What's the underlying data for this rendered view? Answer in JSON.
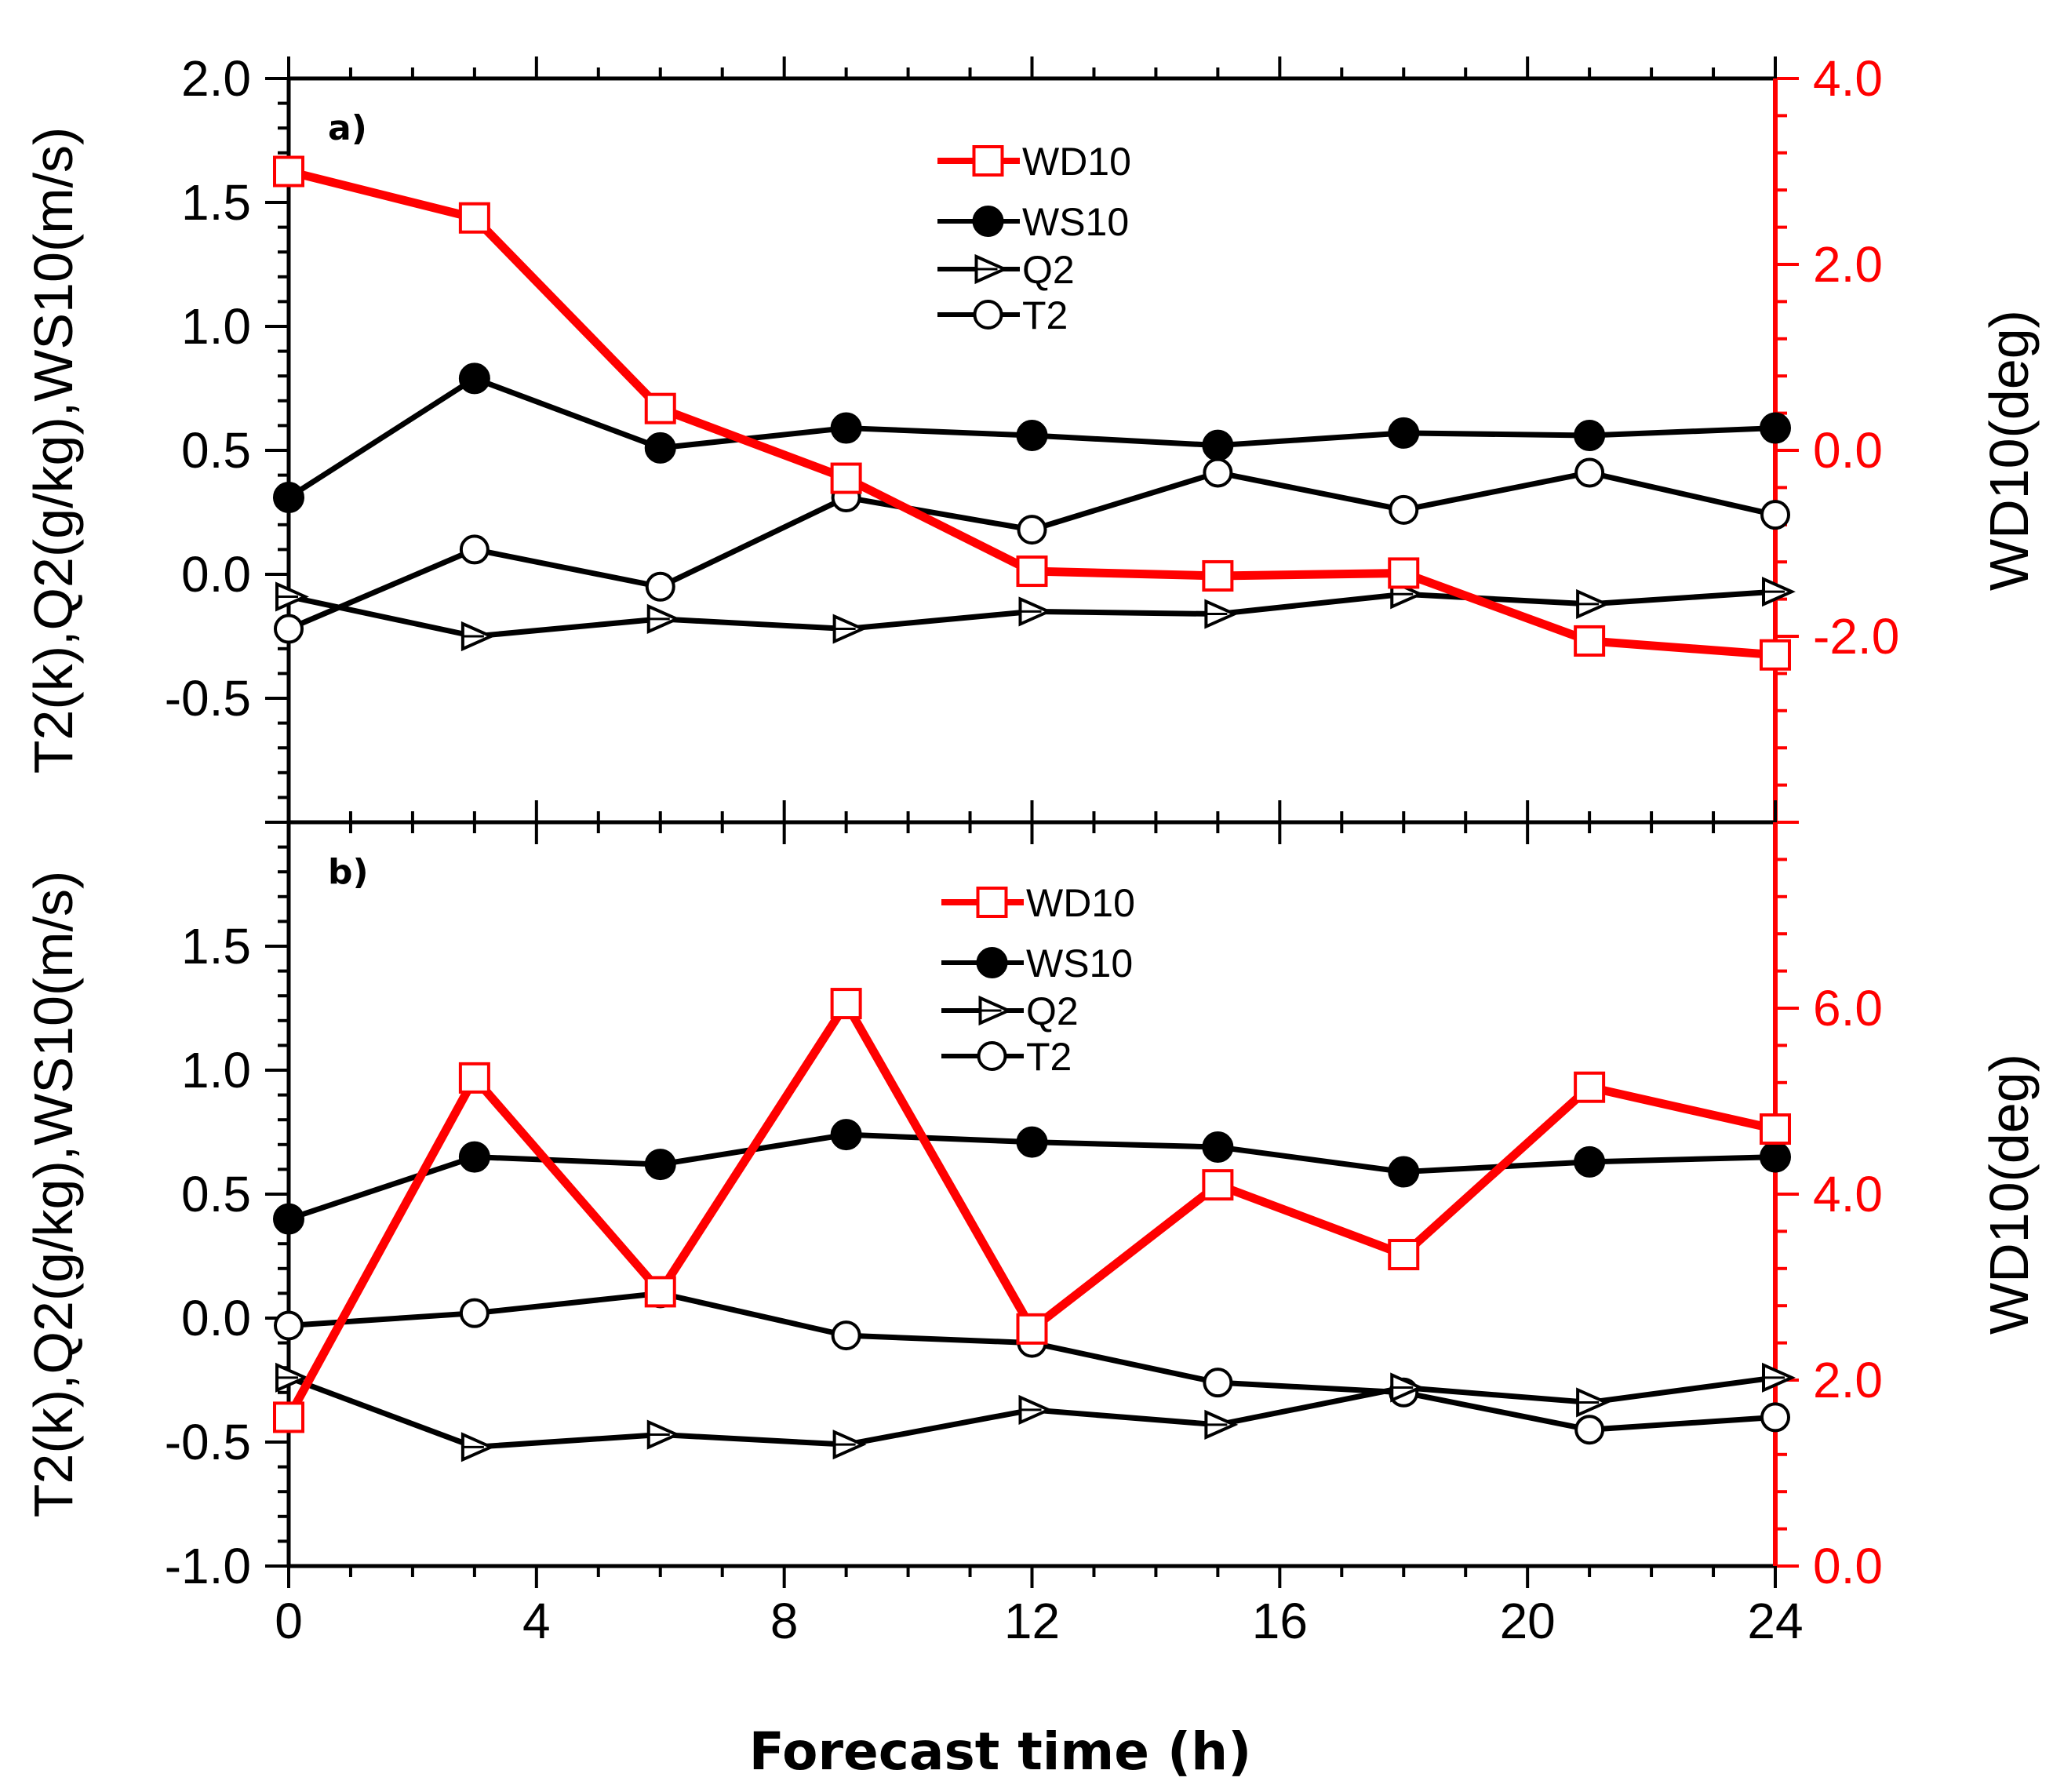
{
  "chart_data": [
    {
      "type": "line",
      "panel_label": "a)",
      "x": [
        0,
        3,
        6,
        9,
        12,
        15,
        18,
        21,
        24
      ],
      "xlim": [
        0,
        24
      ],
      "xticks": [
        0,
        4,
        8,
        12,
        16,
        20,
        24
      ],
      "ylabel": "T2(k),Q2(g/kg),WS10(m/s)",
      "ylim": [
        -1.0,
        2.0
      ],
      "yticks": [
        -0.5,
        0.0,
        0.5,
        1.0,
        1.5,
        2.0
      ],
      "ytick_labels": [
        "-0.5",
        "0.0",
        "0.5",
        "1.0",
        "1.5",
        "2.0"
      ],
      "y2label": "WD10(deg)",
      "y2lim": [
        -4.0,
        4.0
      ],
      "y2ticks": [
        -2.0,
        0.0,
        2.0,
        4.0
      ],
      "y2tick_labels": [
        "-2.0",
        "0.0",
        "2.0",
        "4.0"
      ],
      "legend": [
        "WD10",
        "WS10",
        "Q2",
        "T2"
      ],
      "series": [
        {
          "name": "WD10",
          "axis": "right",
          "color": "#ff0000",
          "marker": "open-square",
          "values": [
            3.0,
            2.5,
            0.45,
            -0.3,
            -1.3,
            -1.35,
            -1.32,
            -2.05,
            -2.2
          ]
        },
        {
          "name": "WS10",
          "axis": "left",
          "color": "#000000",
          "marker": "filled-circle",
          "values": [
            0.31,
            0.79,
            0.51,
            0.59,
            0.56,
            0.52,
            0.57,
            0.56,
            0.59
          ]
        },
        {
          "name": "Q2",
          "axis": "left",
          "color": "#000000",
          "marker": "triangle-right",
          "values": [
            -0.09,
            -0.25,
            -0.18,
            -0.22,
            -0.15,
            -0.16,
            -0.08,
            -0.12,
            -0.07
          ]
        },
        {
          "name": "T2",
          "axis": "left",
          "color": "#000000",
          "marker": "open-circle",
          "values": [
            -0.22,
            0.1,
            -0.05,
            0.31,
            0.18,
            0.41,
            0.26,
            0.41,
            0.24
          ]
        }
      ]
    },
    {
      "type": "line",
      "panel_label": "b)",
      "x": [
        0,
        3,
        6,
        9,
        12,
        15,
        18,
        21,
        24
      ],
      "xlim": [
        0,
        24
      ],
      "xticks": [
        0,
        4,
        8,
        12,
        16,
        20,
        24
      ],
      "xtick_labels": [
        "0",
        "4",
        "8",
        "12",
        "16",
        "20",
        "24"
      ],
      "xlabel": "Forecast time (h)",
      "ylabel": "T2(k),Q2(g/kg),WS10(m/s)",
      "ylim": [
        -1.0,
        2.0
      ],
      "yticks": [
        -1.0,
        -0.5,
        0.0,
        0.5,
        1.0,
        1.5
      ],
      "ytick_labels": [
        "-1.0",
        "-0.5",
        "0.0",
        "0.5",
        "1.0",
        "1.5"
      ],
      "y2label": "WD10(deg)",
      "y2lim": [
        0.0,
        8.0
      ],
      "y2ticks": [
        0.0,
        2.0,
        4.0,
        6.0
      ],
      "y2tick_labels": [
        "0.0",
        "2.0",
        "4.0",
        "6.0"
      ],
      "legend": [
        "WD10",
        "WS10",
        "Q2",
        "T2"
      ],
      "series": [
        {
          "name": "WD10",
          "axis": "right",
          "color": "#ff0000",
          "marker": "open-square",
          "values": [
            1.6,
            5.25,
            2.95,
            6.05,
            2.55,
            4.1,
            3.35,
            5.15,
            4.7
          ]
        },
        {
          "name": "WS10",
          "axis": "left",
          "color": "#000000",
          "marker": "filled-circle",
          "values": [
            0.4,
            0.65,
            0.62,
            0.74,
            0.71,
            0.69,
            0.59,
            0.63,
            0.65
          ]
        },
        {
          "name": "Q2",
          "axis": "left",
          "color": "#000000",
          "marker": "triangle-right",
          "values": [
            -0.24,
            -0.52,
            -0.47,
            -0.51,
            -0.37,
            -0.43,
            -0.28,
            -0.34,
            -0.24
          ]
        },
        {
          "name": "T2",
          "axis": "left",
          "color": "#000000",
          "marker": "open-circle",
          "values": [
            -0.03,
            0.02,
            0.1,
            -0.07,
            -0.1,
            -0.26,
            -0.3,
            -0.45,
            -0.4
          ]
        }
      ]
    }
  ]
}
